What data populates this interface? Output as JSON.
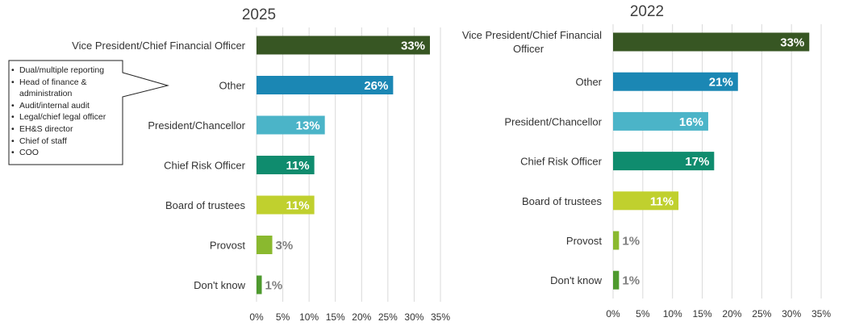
{
  "chart_data": [
    {
      "type": "bar",
      "orientation": "horizontal",
      "title": "2025",
      "categories": [
        "Vice President/Chief Financial Officer",
        "Other",
        "President/Chancellor",
        "Chief Risk Officer",
        "Board of trustees",
        "Provost",
        "Don't know"
      ],
      "values": [
        33,
        26,
        13,
        11,
        11,
        3,
        1
      ],
      "value_labels": [
        "33%",
        "26%",
        "13%",
        "11%",
        "11%",
        "3%",
        "1%"
      ],
      "colors": [
        "#375623",
        "#1B87B4",
        "#4BB4C8",
        "#0F8C6E",
        "#C0D02E",
        "#8AB92F",
        "#4E9A2E"
      ],
      "xlim": [
        0,
        35
      ],
      "xticks": [
        "0%",
        "5%",
        "10%",
        "15%",
        "20%",
        "25%",
        "30%",
        "35%"
      ],
      "grid": true
    },
    {
      "type": "bar",
      "orientation": "horizontal",
      "title": "2022",
      "categories": [
        "Vice President/Chief Financial Officer",
        "Other",
        "President/Chancellor",
        "Chief Risk Officer",
        "Board of trustees",
        "Provost",
        "Don't know"
      ],
      "category_display": [
        [
          "Vice President/Chief Financial",
          "Officer"
        ],
        [
          "Other"
        ],
        [
          "President/Chancellor"
        ],
        [
          "Chief Risk Officer"
        ],
        [
          "Board of trustees"
        ],
        [
          "Provost"
        ],
        [
          "Don't know"
        ]
      ],
      "values": [
        33,
        21,
        16,
        17,
        11,
        1,
        1
      ],
      "value_labels": [
        "33%",
        "21%",
        "16%",
        "17%",
        "11%",
        "1%",
        "1%"
      ],
      "colors": [
        "#375623",
        "#1B87B4",
        "#4BB4C8",
        "#0F8C6E",
        "#C0D02E",
        "#8AB92F",
        "#4E9A2E"
      ],
      "xlim": [
        0,
        35
      ],
      "xticks": [
        "0%",
        "5%",
        "10%",
        "15%",
        "20%",
        "25%",
        "30%",
        "35%"
      ],
      "grid": true
    }
  ],
  "callout": {
    "items": [
      "Dual/multiple reporting",
      "Head of finance & administration",
      "Audit/internal audit",
      "Legal/chief legal officer",
      "EH&S director",
      "Chief of staff",
      "COO"
    ]
  }
}
